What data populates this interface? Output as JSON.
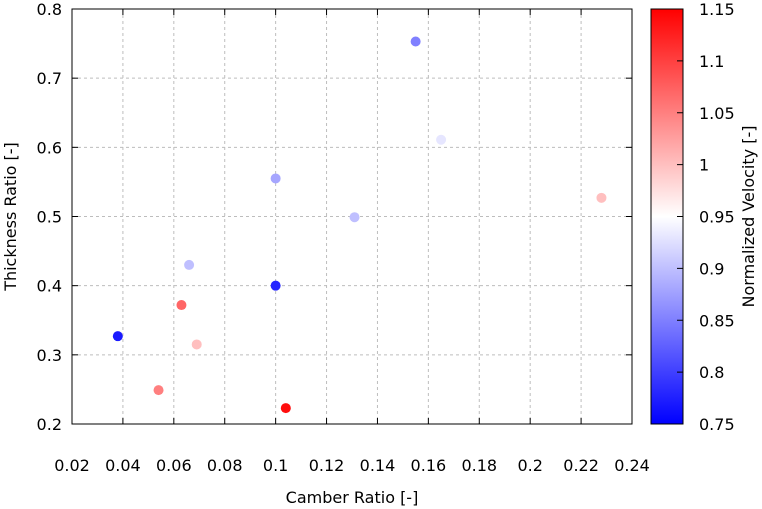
{
  "chart_data": {
    "type": "scatter",
    "title": "",
    "xlabel": "Camber Ratio [-]",
    "ylabel": "Thickness Ratio [-]",
    "colorbar_label": "Normalized Velocity [-]",
    "xlim": [
      0.02,
      0.24
    ],
    "ylim": [
      0.2,
      0.8
    ],
    "clim": [
      0.75,
      1.15
    ],
    "grid": true,
    "xticks": [
      "0.02",
      "0.04",
      "0.06",
      "0.08",
      "0.1",
      "0.12",
      "0.14",
      "0.16",
      "0.18",
      "0.2",
      "0.22",
      "0.24"
    ],
    "yticks": [
      "0.2",
      "0.3",
      "0.4",
      "0.5",
      "0.6",
      "0.7",
      "0.8"
    ],
    "cticks": [
      "0.75",
      "0.8",
      "0.85",
      "0.9",
      "0.95",
      "1",
      "1.05",
      "1.1",
      "1.15"
    ],
    "colormap": [
      "#0000ff",
      "#ffffff",
      "#ff0000"
    ],
    "points": [
      {
        "x": 0.155,
        "y": 0.753,
        "c": 0.85
      },
      {
        "x": 0.165,
        "y": 0.611,
        "c": 0.93
      },
      {
        "x": 0.1,
        "y": 0.555,
        "c": 0.88
      },
      {
        "x": 0.131,
        "y": 0.499,
        "c": 0.9
      },
      {
        "x": 0.228,
        "y": 0.527,
        "c": 1.0
      },
      {
        "x": 0.066,
        "y": 0.43,
        "c": 0.9
      },
      {
        "x": 0.1,
        "y": 0.4,
        "c": 0.78
      },
      {
        "x": 0.063,
        "y": 0.372,
        "c": 1.07
      },
      {
        "x": 0.038,
        "y": 0.327,
        "c": 0.77
      },
      {
        "x": 0.069,
        "y": 0.315,
        "c": 1.0
      },
      {
        "x": 0.054,
        "y": 0.249,
        "c": 1.05
      },
      {
        "x": 0.104,
        "y": 0.223,
        "c": 1.14
      }
    ]
  }
}
